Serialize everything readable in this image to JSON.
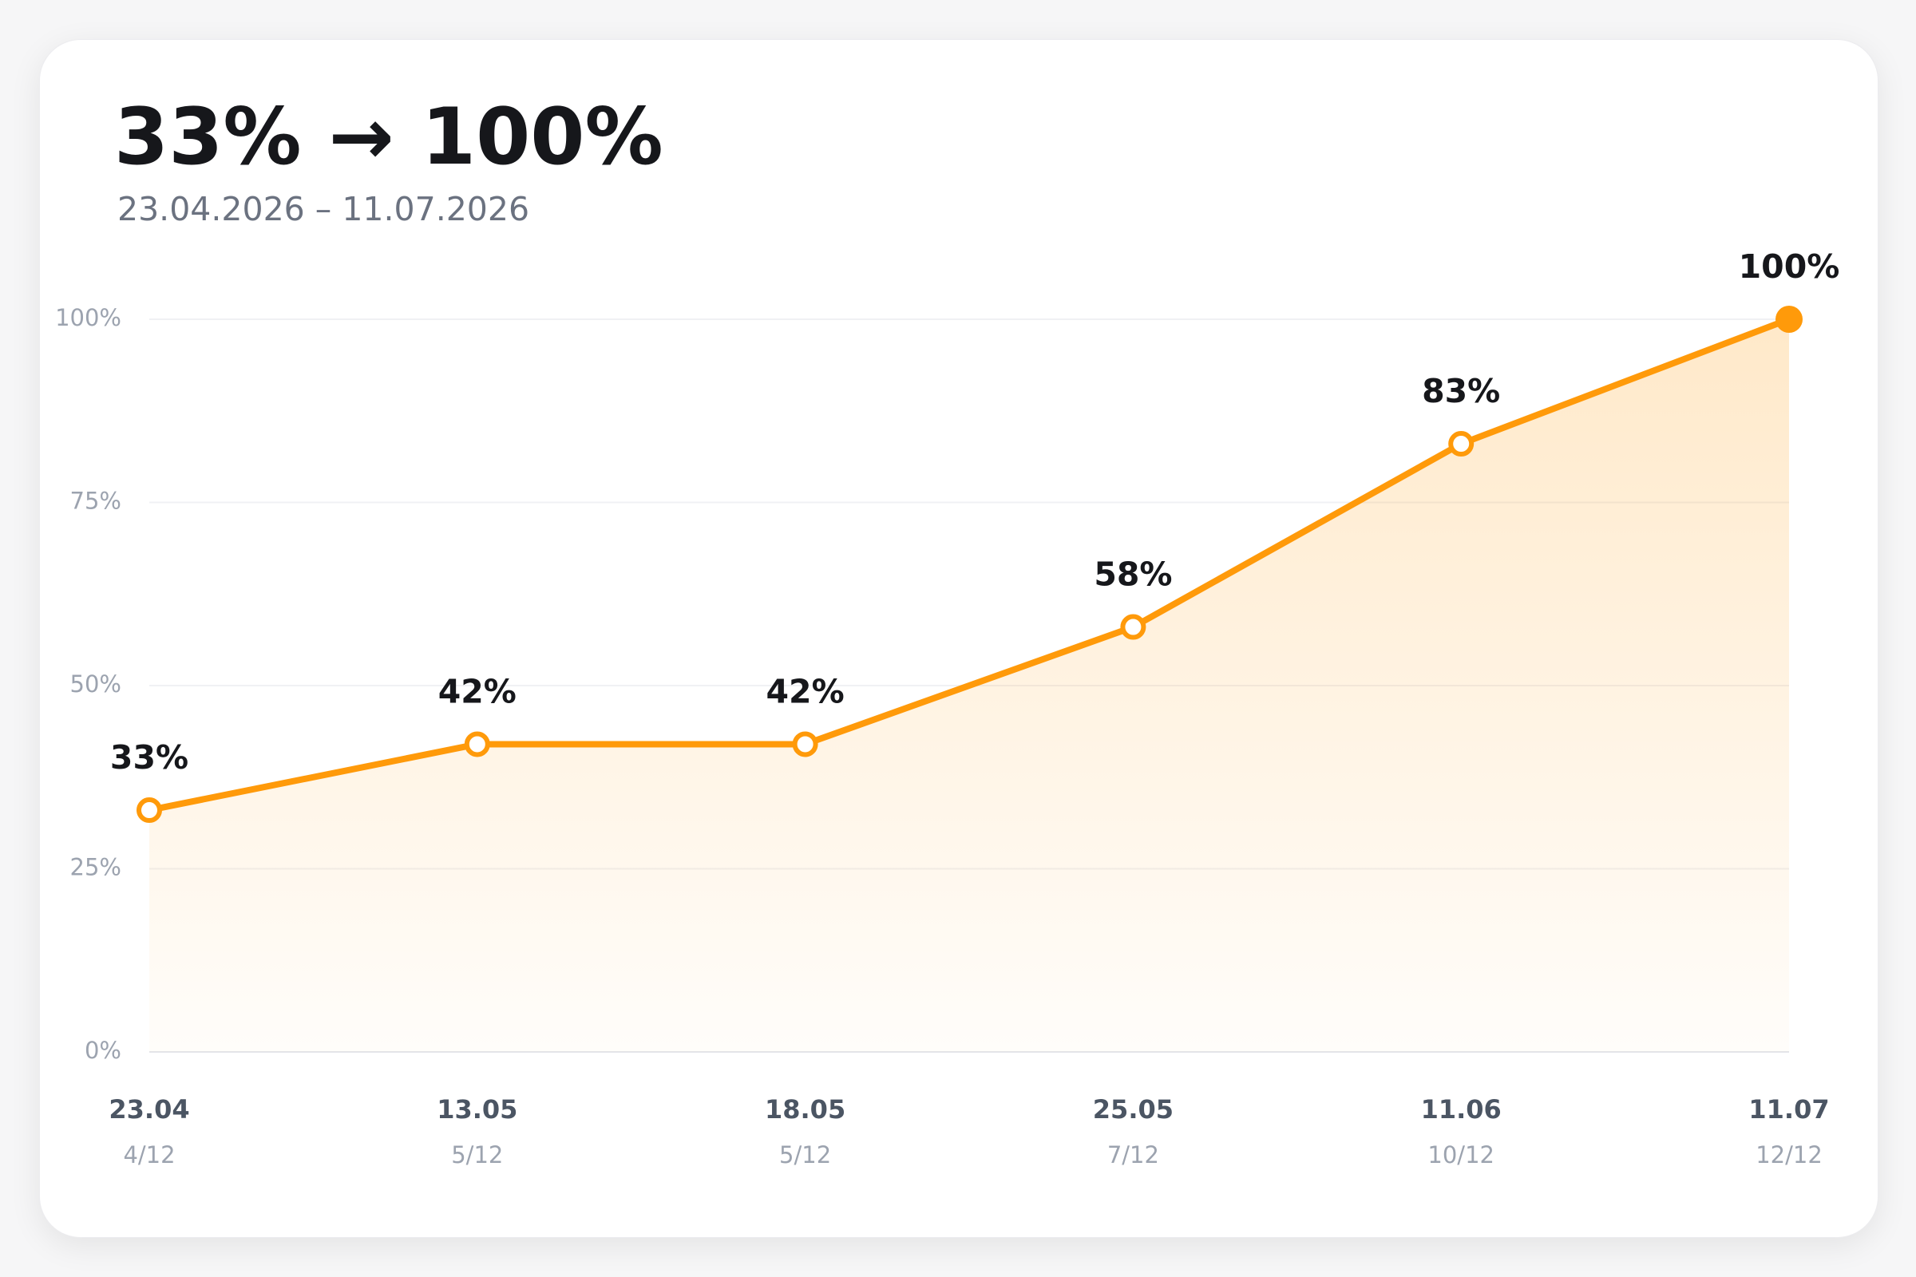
{
  "chart_data": {
    "type": "line",
    "title": "33% → 100%",
    "subtitle": "23.04.2026 – 11.07.2026",
    "categories": [
      "23.04",
      "13.05",
      "18.05",
      "25.05",
      "11.06",
      "11.07"
    ],
    "sublabels": [
      "4/12",
      "5/12",
      "5/12",
      "7/12",
      "10/12",
      "12/12"
    ],
    "series": [
      {
        "color": "#ff9a0a",
        "values": [
          33,
          42,
          42,
          58,
          83,
          100
        ],
        "value_labels": [
          "33%",
          "42%",
          "42%",
          "58%",
          "83%",
          "100%"
        ]
      }
    ],
    "ylim": [
      0,
      100
    ],
    "yticks": [
      {
        "value": 0,
        "label": "0%"
      },
      {
        "value": 25,
        "label": "25%"
      },
      {
        "value": 50,
        "label": "50%"
      },
      {
        "value": 75,
        "label": "75%"
      },
      {
        "value": 100,
        "label": "100%"
      }
    ],
    "grid": true
  }
}
